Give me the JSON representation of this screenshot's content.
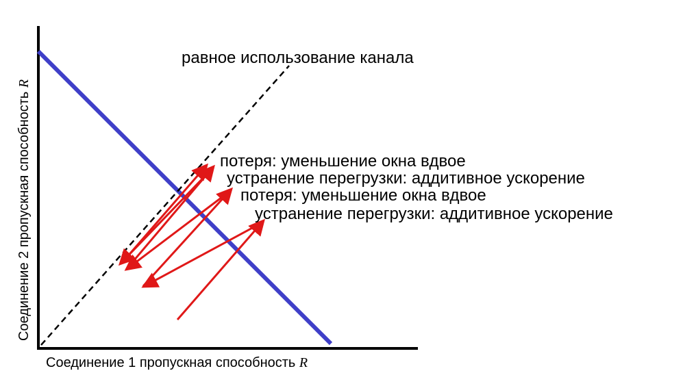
{
  "diagram": {
    "equal_share_label": "равное использование канала",
    "annotations": [
      "потеря: уменьшение окна вдвое",
      "устранение перегрузки: аддитивное ускорение",
      "потеря: уменьшение окна вдвое",
      "устранение перегрузки: аддитивное ускорение"
    ],
    "x_axis_label": "Соединение 1 пропускная способность",
    "y_axis_label": "Соединение 2 пропускная способность",
    "axis_symbol": "R",
    "colors": {
      "axes": "#000000",
      "full_utilization_line": "#3f3fc8",
      "equal_share_line": "#000000",
      "trajectory": "#e01818"
    }
  }
}
